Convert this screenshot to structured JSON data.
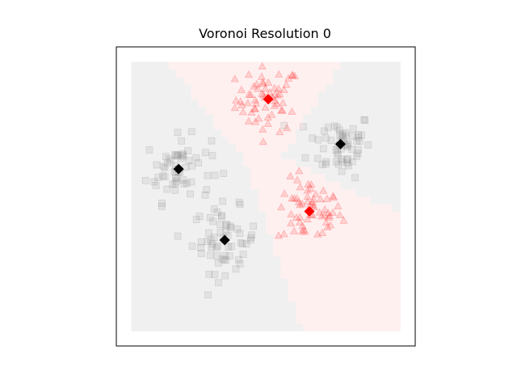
{
  "chart_data": {
    "type": "scatter",
    "title": "Voronoi Resolution 0",
    "xlabel": "",
    "ylabel": "",
    "xlim": [
      -1.2,
      1.2
    ],
    "ylim": [
      -1.2,
      1.2
    ],
    "grid": false,
    "axis_ticks": false,
    "background_regions": "voronoi cells of the 5 centroids, red cells for red centroids and gray cells for black centroids",
    "series": [
      {
        "marker": "diamond",
        "color": "#ff0000",
        "role": "centroid",
        "points": [
          [
            0.02,
            0.78
          ],
          [
            0.35,
            -0.12
          ]
        ]
      },
      {
        "marker": "diamond",
        "color": "#000000",
        "role": "centroid",
        "points": [
          [
            0.6,
            0.42
          ],
          [
            -0.7,
            0.22
          ],
          [
            -0.33,
            -0.35
          ]
        ]
      },
      {
        "marker": "triangle",
        "color": "#ff0000",
        "role": "samples",
        "cluster_centers": [
          [
            0.02,
            0.78
          ],
          [
            0.35,
            -0.12
          ]
        ],
        "points_per_cluster": 60
      },
      {
        "marker": "square",
        "color": "#808080",
        "role": "samples",
        "cluster_centers": [
          [
            0.6,
            0.42
          ],
          [
            -0.7,
            0.22
          ],
          [
            -0.33,
            -0.35
          ]
        ],
        "points_per_cluster": 60
      }
    ]
  }
}
